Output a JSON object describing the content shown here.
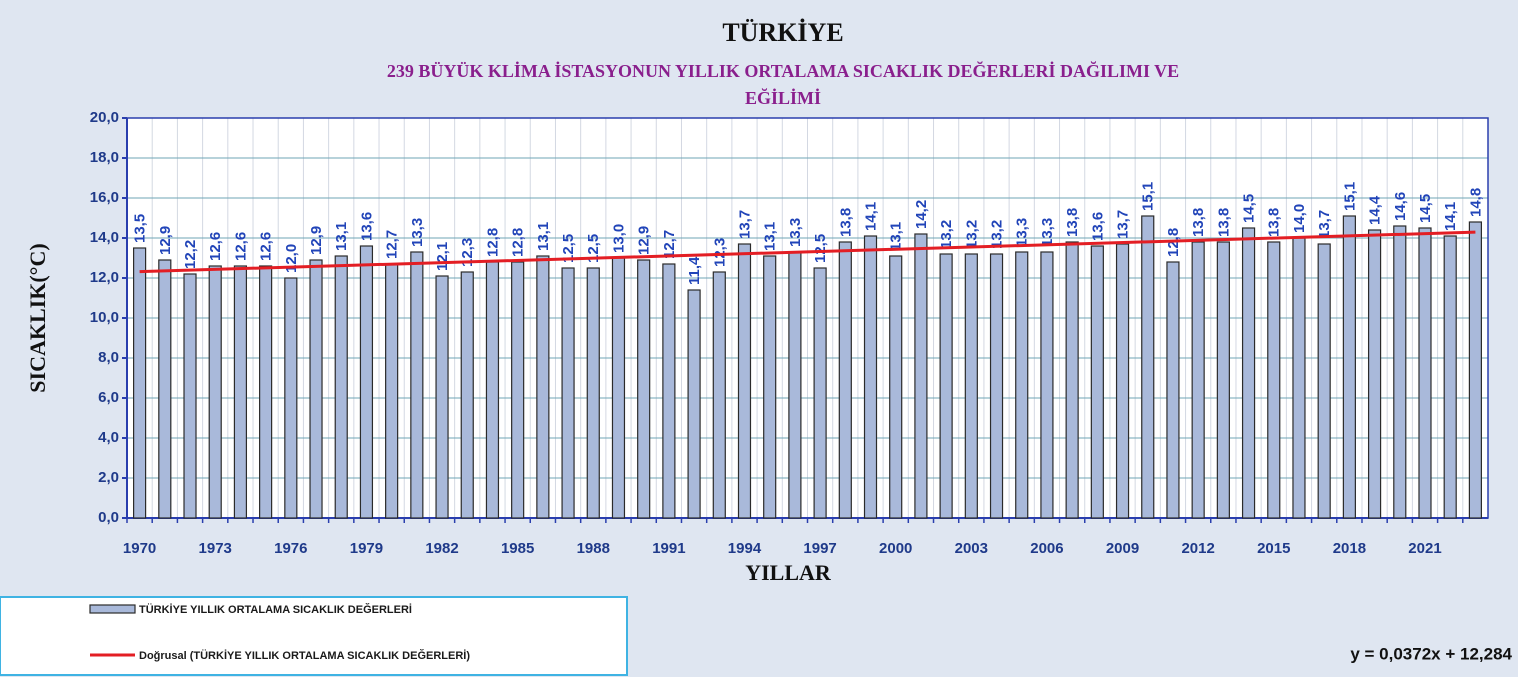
{
  "chart_data": {
    "type": "bar",
    "title": "TÜRKİYE",
    "subtitle": [
      "239 BÜYÜK KLİMA İSTASYONUN YILLIK ORTALAMA SICAKLIK DEĞERLERİ DAĞILIMI  VE",
      "EĞİLİMİ"
    ],
    "y_label": "SICAKLIK(°C)",
    "x_label": "YILLAR",
    "categories": [
      "1970",
      null,
      null,
      "1973",
      null,
      null,
      "1976",
      null,
      null,
      "1979",
      null,
      null,
      "1982",
      null,
      null,
      "1985",
      null,
      null,
      "1988",
      null,
      null,
      "1991",
      null,
      null,
      "1994",
      null,
      null,
      "1997",
      null,
      null,
      "2000",
      null,
      null,
      "2003",
      null,
      null,
      "2006",
      null,
      null,
      "2009",
      null,
      null,
      "2012",
      null,
      null,
      "2015",
      null,
      null,
      "2018",
      null,
      null,
      "2021",
      null,
      null
    ],
    "series": [
      {
        "name": "TÜRKİYE YILLIK ORTALAMA SICAKLIK DEĞERLERİ",
        "color": "#a9b9da",
        "values": [
          13.5,
          12.9,
          12.2,
          12.6,
          12.6,
          12.6,
          12.0,
          12.9,
          13.1,
          13.6,
          12.7,
          13.3,
          12.1,
          12.3,
          12.8,
          12.8,
          13.1,
          12.5,
          12.5,
          13.0,
          12.9,
          12.7,
          11.4,
          12.3,
          13.7,
          13.1,
          13.3,
          12.5,
          13.8,
          14.1,
          13.1,
          14.2,
          13.2,
          13.2,
          13.2,
          13.3,
          13.3,
          13.8,
          13.6,
          13.7,
          15.1,
          12.8,
          13.8,
          13.8,
          14.5,
          13.8,
          14.0,
          13.7,
          15.1,
          14.4,
          14.6,
          14.5,
          14.1,
          14.8
        ],
        "value_labels": [
          "13,5",
          "12,9",
          "12,2",
          "12,6",
          "12,6",
          "12,6",
          "12,0",
          "12,9",
          "13,1",
          "13,6",
          "12,7",
          "13,3",
          "12,1",
          "12,3",
          "12,8",
          "12,8",
          "13,1",
          "12,5",
          "12,5",
          "13,0",
          "12,9",
          "12,7",
          "11,4",
          "12,3",
          "13,7",
          "13,1",
          "13,3",
          "12,5",
          "13,8",
          "14,1",
          "13,1",
          "14,2",
          "13,2",
          "13,2",
          "13,2",
          "13,3",
          "13,3",
          "13,8",
          "13,6",
          "13,7",
          "15,1",
          "12,8",
          "13,8",
          "13,8",
          "14,5",
          "13,8",
          "14,0",
          "13,7",
          "15,1",
          "14,4",
          "14,6",
          "14,5",
          "14,1",
          "14,8"
        ]
      }
    ],
    "trend": {
      "name": "Doğrusal (TÜRKİYE YILLIK ORTALAMA SICAKLIK DEĞERLERİ)",
      "color": "#e31e24",
      "slope": 0.0372,
      "intercept": 12.284,
      "label": "y = 0,0372x + 12,284"
    },
    "ylim": [
      0,
      20
    ],
    "yticks": [
      {
        "value": 0,
        "label": "0,0"
      },
      {
        "value": 2,
        "label": "2,0"
      },
      {
        "value": 4,
        "label": "4,0"
      },
      {
        "value": 6,
        "label": "6,0"
      },
      {
        "value": 8,
        "label": "8,0"
      },
      {
        "value": 10,
        "label": "10,0"
      },
      {
        "value": 12,
        "label": "12,0"
      },
      {
        "value": 14,
        "label": "14,0"
      },
      {
        "value": 16,
        "label": "16,0"
      },
      {
        "value": 18,
        "label": "18,0"
      },
      {
        "value": 20,
        "label": "20,0"
      }
    ],
    "grid": true
  }
}
